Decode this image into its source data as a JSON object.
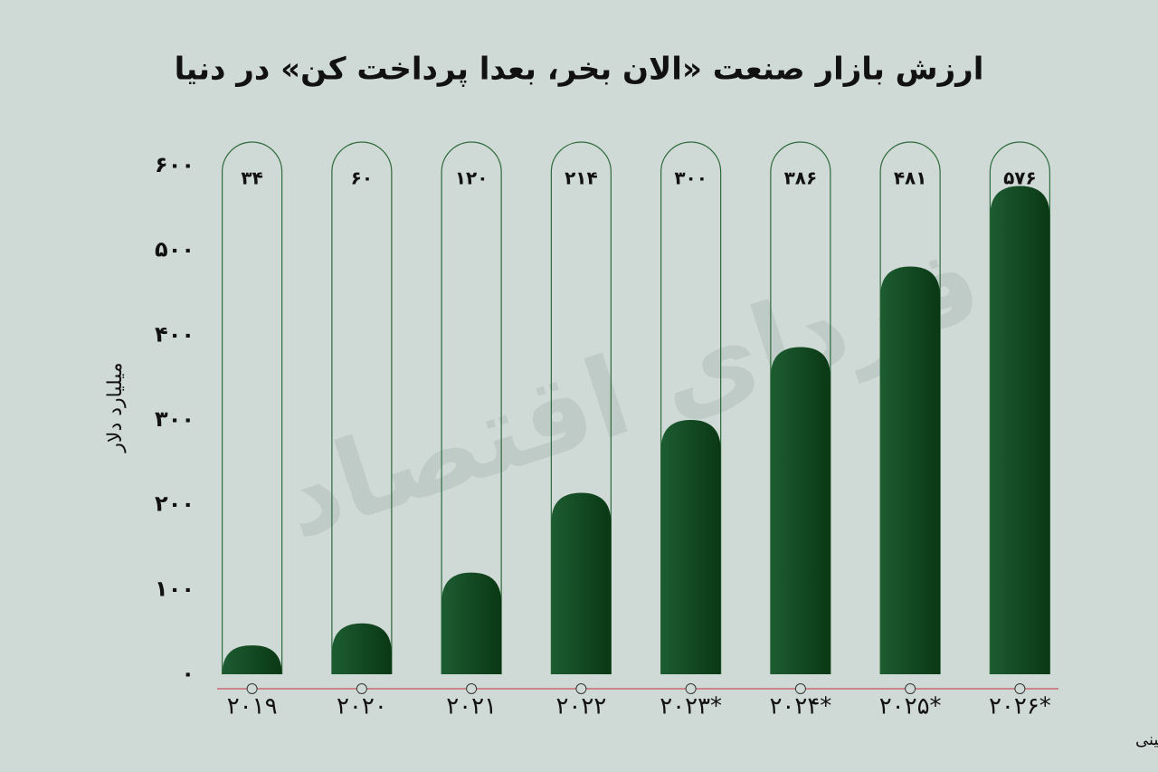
{
  "chart_data": {
    "type": "bar",
    "title": "ارزش بازار صنعت «الان بخر، بعدا پرداخت کن» در دنیا",
    "y_label": "میلیارد دلار",
    "watermark": "فردای اقتصاد",
    "footnote": "*پیش بینی",
    "categories": [
      "۲۰۱۹",
      "۲۰۲۰",
      "۲۰۲۱",
      "۲۰۲۲",
      "۲۰۲۳*",
      "۲۰۲۴*",
      "۲۰۲۵*",
      "۲۰۲۶*"
    ],
    "values": [
      34,
      60,
      120,
      214,
      300,
      386,
      481,
      576
    ],
    "value_labels": [
      "۳۴",
      "۶۰",
      "۱۲۰",
      "۲۱۴",
      "۳۰۰",
      "۳۸۶",
      "۴۸۱",
      "۵۷۶"
    ],
    "color": "#124a23",
    "ylim": [
      0,
      600
    ],
    "yticks": [
      {
        "value": 0,
        "label": "۰"
      },
      {
        "value": 100,
        "label": "۱۰۰"
      },
      {
        "value": 200,
        "label": "۲۰۰"
      },
      {
        "value": 300,
        "label": "۳۰۰"
      },
      {
        "value": 400,
        "label": "۴۰۰"
      },
      {
        "value": 500,
        "label": "۵۰۰"
      },
      {
        "value": 600,
        "label": "۶۰۰"
      }
    ],
    "grid": false
  }
}
